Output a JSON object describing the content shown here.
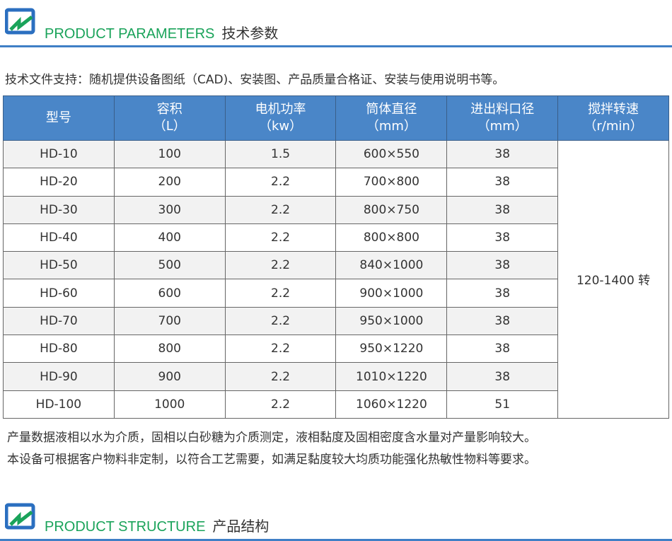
{
  "section1": {
    "title_en": "PRODUCT PARAMETERS",
    "title_cn": "技术参数"
  },
  "intro": "技术文件支持：随机提供设备图纸（CAD)、安装图、产品质量合格证、安装与使用说明书等。",
  "table": {
    "headers": [
      [
        "型号",
        ""
      ],
      [
        "容积",
        "（L）"
      ],
      [
        "电机功率",
        "（kw）"
      ],
      [
        "筒体直径",
        "（mm）"
      ],
      [
        "进出料口径",
        "（mm）"
      ],
      [
        "搅拌转速",
        "（r/min）"
      ]
    ],
    "rows": [
      [
        "HD-10",
        "100",
        "1.5",
        "600×550",
        "38"
      ],
      [
        "HD-20",
        "200",
        "2.2",
        "700×800",
        "38"
      ],
      [
        "HD-30",
        "300",
        "2.2",
        "800×750",
        "38"
      ],
      [
        "HD-40",
        "400",
        "2.2",
        "800×800",
        "38"
      ],
      [
        "HD-50",
        "500",
        "2.2",
        "840×1000",
        "38"
      ],
      [
        "HD-60",
        "600",
        "2.2",
        "900×1000",
        "38"
      ],
      [
        "HD-70",
        "700",
        "2.2",
        "950×1000",
        "38"
      ],
      [
        "HD-80",
        "800",
        "2.2",
        "950×1220",
        "38"
      ],
      [
        "HD-90",
        "900",
        "2.2",
        "1010×1220",
        "38"
      ],
      [
        "HD-100",
        "1000",
        "2.2",
        "1060×1220",
        "51"
      ]
    ],
    "speed": "120-1400 转"
  },
  "notes": [
    "产量数据液相以水为介质，固相以白砂糖为介质测定，液相黏度及固相密度含水量对产量影响较大。",
    "本设备可根据客户物料非定制，以符合工艺需要，如满足黏度较大均质功能强化热敏性物料等要求。"
  ],
  "section2": {
    "title_en": "PRODUCT STRUCTURE",
    "title_cn": "产品结构"
  },
  "colors": {
    "accent_green": "#1aa35a",
    "header_blue": "#4a86c8",
    "rule_blue": "#3f7fc6"
  }
}
